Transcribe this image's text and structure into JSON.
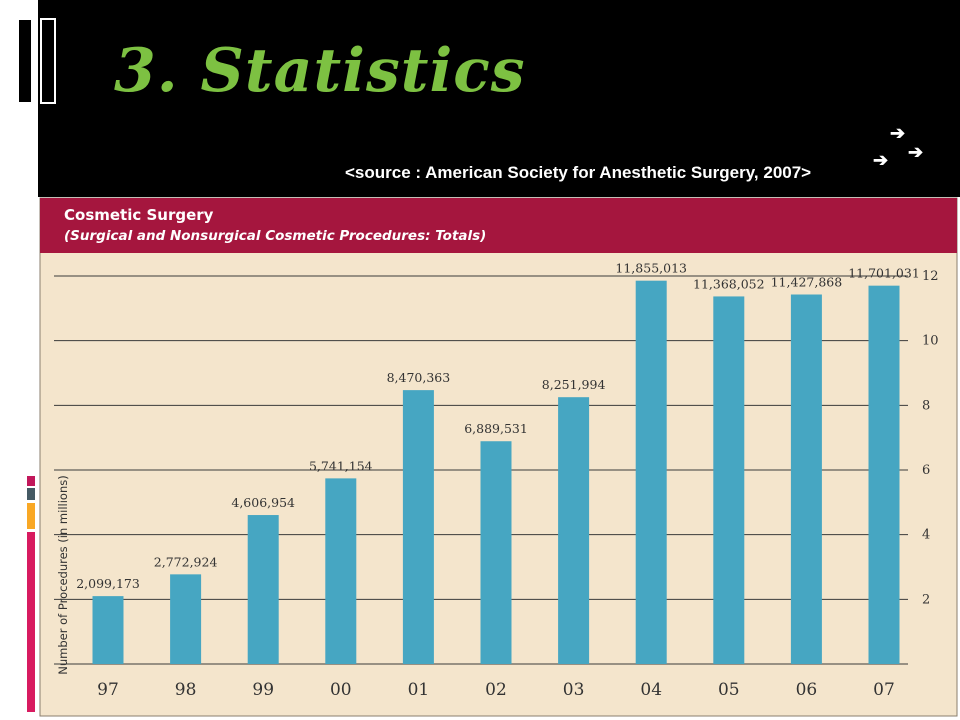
{
  "slide": {
    "title": "3. Statistics",
    "source": "<source : American Society for Anesthetic Surgery, 2007>",
    "arrow_glyph": "➔",
    "colors": {
      "title": "#7dc142",
      "background": "#000000",
      "text": "#ffffff"
    }
  },
  "chart_data": {
    "type": "bar",
    "title": "Cosmetic Surgery",
    "subtitle": "(Surgical and Nonsurgical Cosmetic Procedures: Totals)",
    "ylabel": "Number of Procedures (in millions)",
    "xlabel": "",
    "categories": [
      "97",
      "98",
      "99",
      "00",
      "01",
      "02",
      "03",
      "04",
      "05",
      "06",
      "07"
    ],
    "values": [
      2099173,
      2772924,
      4606954,
      5741154,
      8470363,
      6889531,
      8251994,
      11855013,
      11368052,
      11427868,
      11701031
    ],
    "value_labels": [
      "2,099,173",
      "2,772,924",
      "4,606,954",
      "5,741,154",
      "8,470,363",
      "6,889,531",
      "8,251,994",
      "11,855,013",
      "11,368,052",
      "11,427,868",
      "11,701,031"
    ],
    "yticks": [
      2,
      4,
      6,
      8,
      10,
      12
    ],
    "ytick_labels": [
      "2",
      "4",
      "6",
      "8",
      "10",
      "12"
    ],
    "ylim": [
      0,
      12
    ],
    "y_unit": "millions",
    "grid": true,
    "yaxis_side": "right",
    "colors": {
      "bar": "#46a6c2",
      "header": "#a5163e",
      "panel": "#f4e5cc"
    }
  }
}
